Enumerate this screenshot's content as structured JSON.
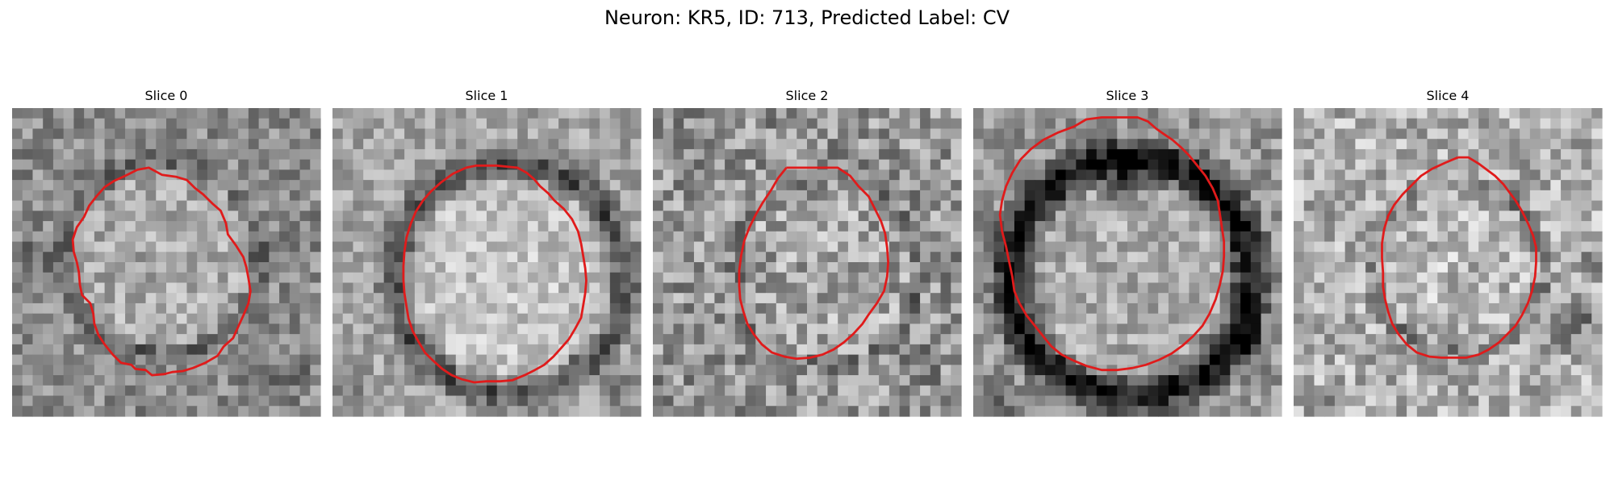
{
  "figure": {
    "suptitle": "Neuron: KR5, ID: 713, Predicted Label: CV",
    "contour_color": "#e01b1b",
    "colormap": "grayscale",
    "grid_size": 30
  },
  "panels": [
    {
      "title": "Slice 0",
      "shape": "round cell body, mid-gray interior, darker rim on left"
    },
    {
      "title": "Slice 1",
      "shape": "round cell body with dark ring and bright textured interior"
    },
    {
      "title": "Slice 2",
      "shape": "octagonal ROI over noisy gray texture"
    },
    {
      "title": "Slice 3",
      "shape": "large ROI surrounded by very dark ring, bright interior"
    },
    {
      "title": "Slice 4",
      "shape": "smaller rounded ROI over noisy light-gray texture"
    }
  ]
}
